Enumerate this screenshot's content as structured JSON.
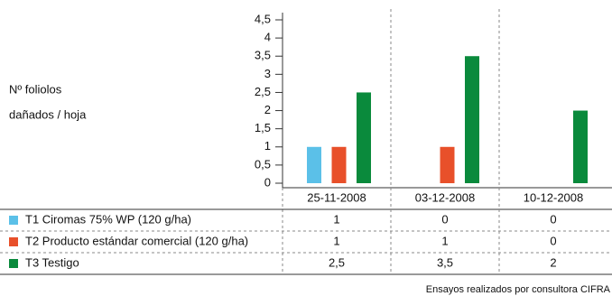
{
  "chart_data": {
    "type": "bar",
    "y_label_lines": [
      "Nº foliolos",
      "dañados / hoja"
    ],
    "categories": [
      "25-11-2008",
      "03-12-2008",
      "10-12-2008"
    ],
    "series": [
      {
        "name": "T1 Ciromas 75% WP (120 g/ha)",
        "color": "#5bc0e8",
        "values": [
          1,
          0,
          0
        ]
      },
      {
        "name": "T2 Producto estándar comercial (120 g/ha)",
        "color": "#e8502a",
        "values": [
          1,
          1,
          0
        ]
      },
      {
        "name": "T3 Testigo",
        "color": "#0a8a3c",
        "values": [
          2.5,
          3.5,
          2
        ],
        "value_labels": [
          "2,5",
          "3,5",
          "2"
        ]
      }
    ],
    "ylim": [
      0,
      4.5
    ],
    "yticks": [
      0,
      {
        "value": 0.5,
        "label": "0,5"
      },
      1,
      {
        "value": 1.5,
        "label": "1,5"
      },
      2,
      {
        "value": 2.5,
        "label": "2,5"
      },
      3,
      {
        "value": 3.5,
        "label": "3,5"
      },
      4,
      {
        "value": 4.5,
        "label": "4,5"
      }
    ],
    "source": "Ensayos realizados por consultora CIFRA"
  }
}
